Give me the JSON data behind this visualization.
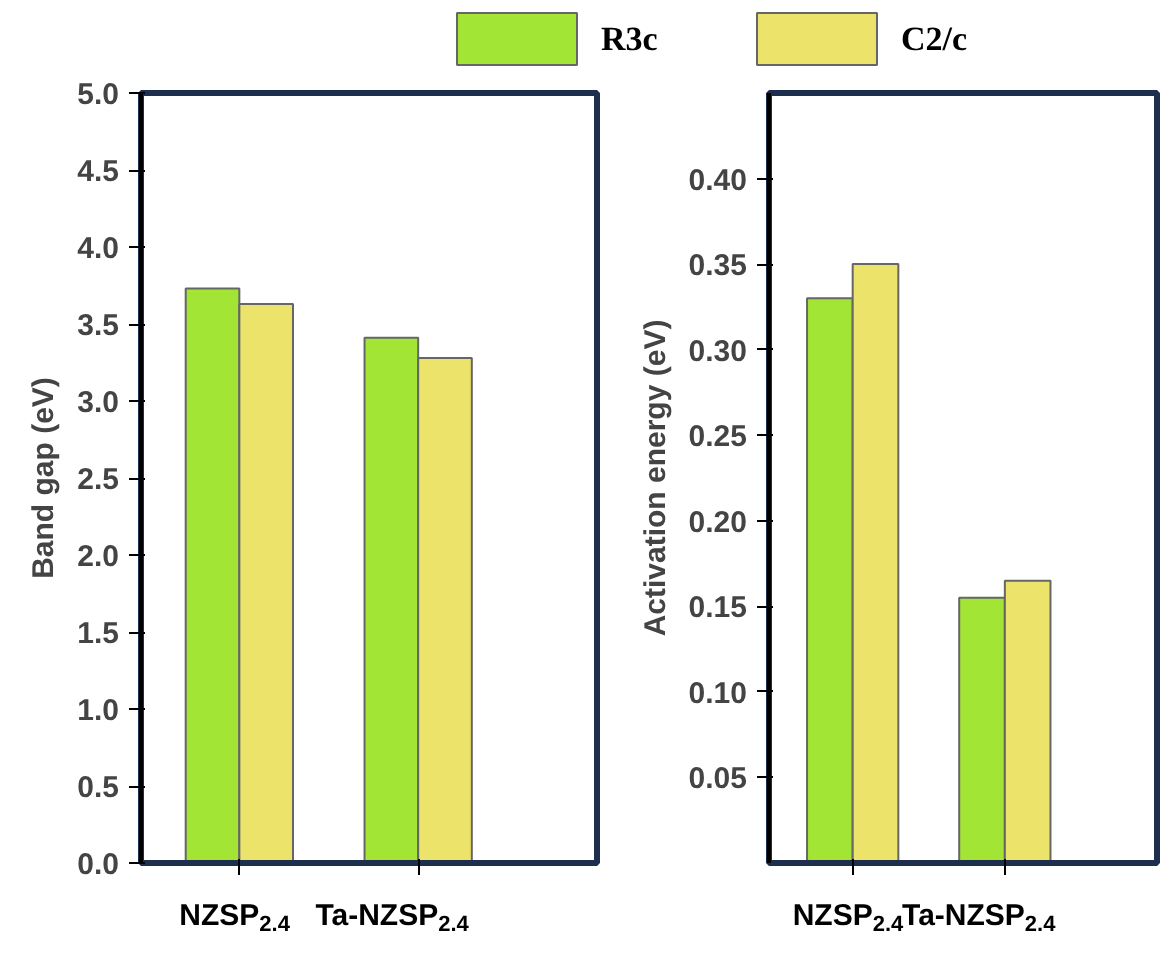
{
  "chart_data": [
    {
      "type": "bar",
      "categories": [
        "NZSP$_{2.4}$",
        "Ta-NZSP$_{2.4}$"
      ],
      "ylabel": "Band gap (eV)",
      "ylim": [
        0,
        5.0
      ],
      "yticks": [
        {
          "value": 0,
          "label": "0.0"
        },
        {
          "value": 0.5,
          "label": "0.5"
        },
        {
          "value": 1,
          "label": "1.0"
        },
        {
          "value": 1.5,
          "label": "1.5"
        },
        {
          "value": 2,
          "label": "2.0"
        },
        {
          "value": 2.5,
          "label": "2.5"
        },
        {
          "value": 3,
          "label": "3.0"
        },
        {
          "value": 3.5,
          "label": "3.5"
        },
        {
          "value": 4,
          "label": "4.0"
        },
        {
          "value": 4.5,
          "label": "4.5"
        },
        {
          "value": 5,
          "label": "5.0"
        }
      ],
      "legend": "top",
      "grid": false,
      "series": [
        {
          "name": "R3c",
          "color": "#a2e535",
          "values": [
            3.73,
            3.41
          ]
        },
        {
          "name": "C2/c",
          "color": "#ece36a",
          "values": [
            3.63,
            3.28
          ]
        }
      ]
    },
    {
      "type": "bar",
      "categories": [
        "NZSP$_{2.4}$",
        "Ta-NZSP$_{2.4}$"
      ],
      "ylabel": "Activation energy (eV)",
      "ylim": [
        0,
        0.45
      ],
      "yticks": [
        0.05,
        {
          "value": 0.1,
          "label": "0.10"
        },
        0.15,
        {
          "value": 0.2,
          "label": "0.20"
        },
        0.25,
        {
          "value": 0.3,
          "label": "0.30"
        },
        0.35,
        {
          "value": 0.4,
          "label": "0.40"
        }
      ],
      "legend": false,
      "grid": false,
      "series": [
        {
          "color": "#a2e535",
          "values": [
            0.33,
            0.155
          ]
        },
        {
          "color": "#ece36a",
          "values": [
            0.35,
            0.165
          ]
        }
      ]
    }
  ]
}
